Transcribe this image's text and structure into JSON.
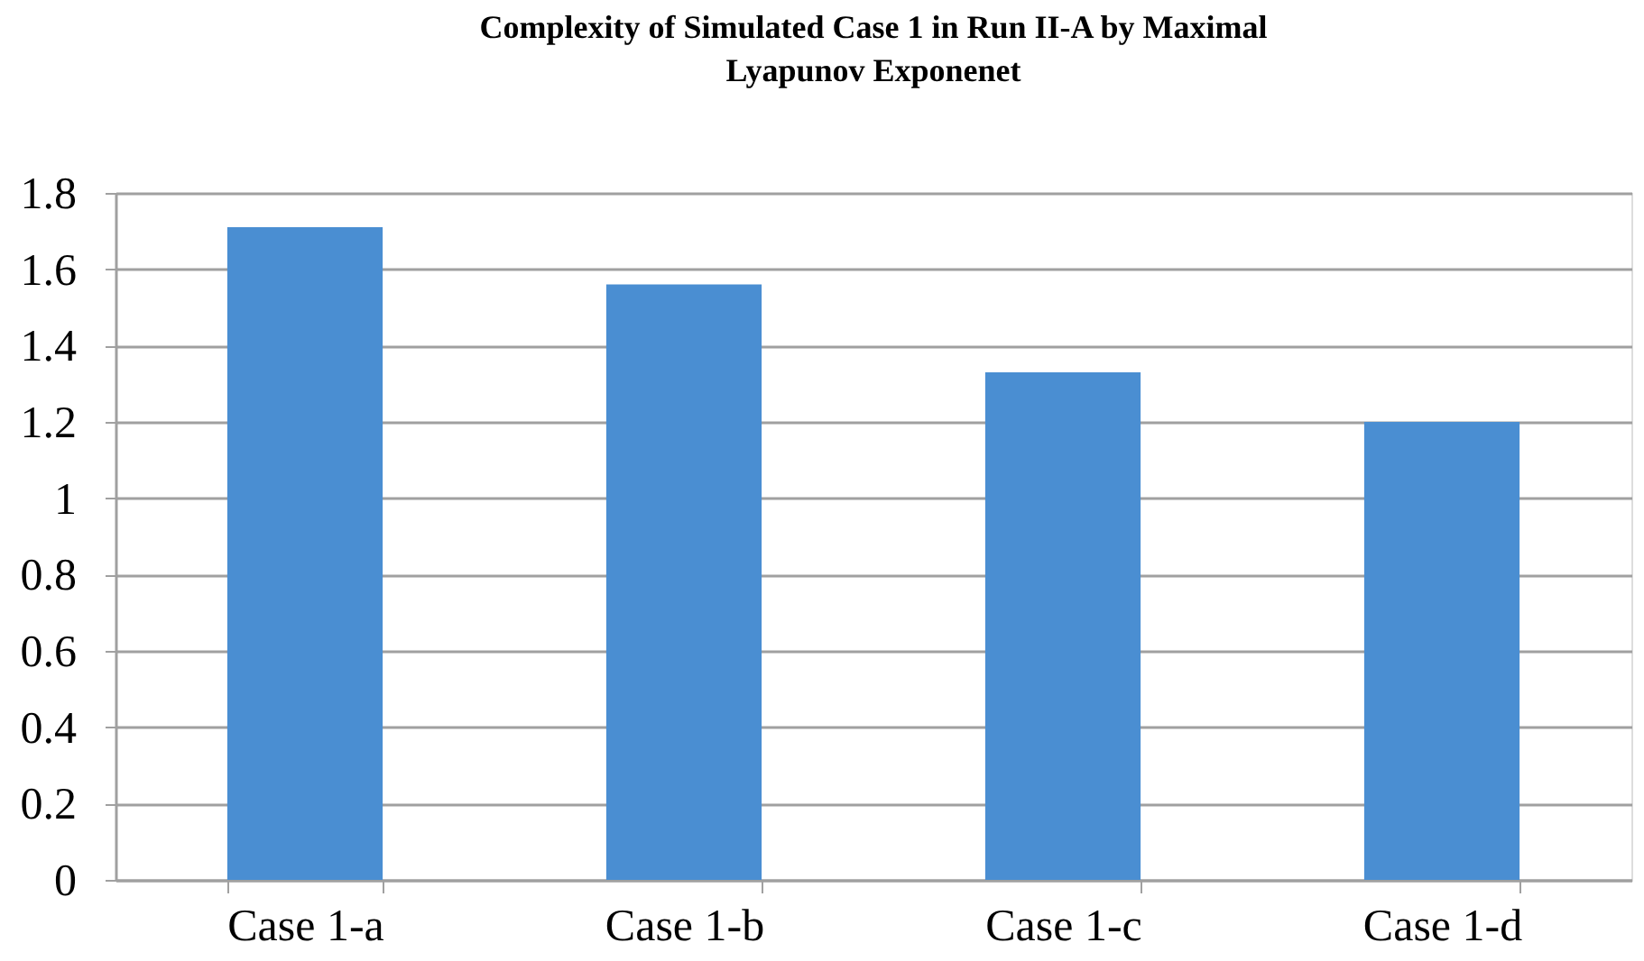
{
  "chart_data": {
    "type": "bar",
    "title": "Complexity of Simulated Case 1 in Run II-A by Maximal Lyapunov Exponenet",
    "categories": [
      "Case 1-a",
      "Case 1-b",
      "Case 1-c",
      "Case 1-d"
    ],
    "values": [
      1.71,
      1.56,
      1.33,
      1.2
    ],
    "color": "#4a8ed2",
    "ylim": [
      0,
      1.8
    ],
    "yticks": [
      0,
      0.2,
      0.4,
      0.6,
      0.8,
      1,
      1.2,
      1.4,
      1.6,
      1.8
    ],
    "grid": "y"
  }
}
